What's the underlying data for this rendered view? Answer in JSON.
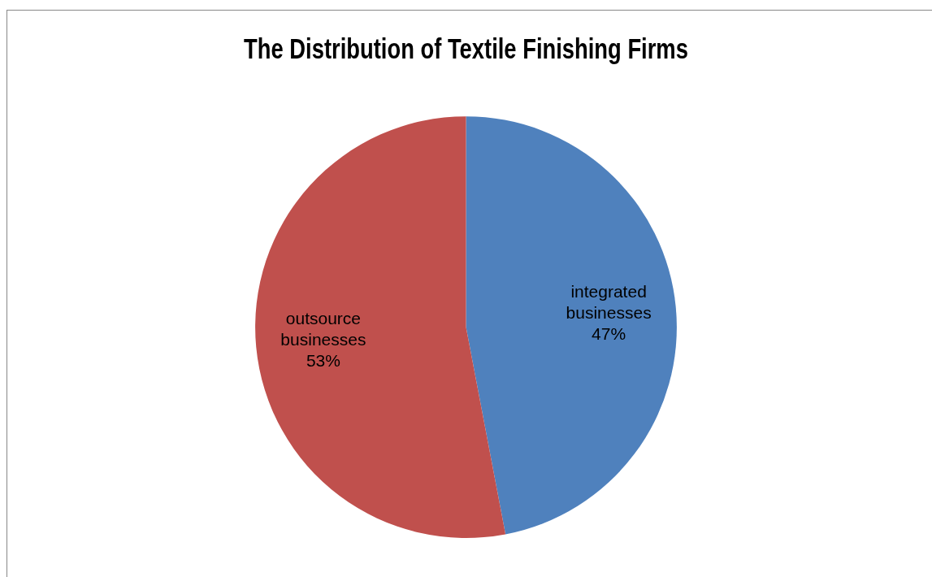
{
  "chart_data": {
    "type": "pie",
    "title": "The Distribution of Textile Finishing Firms",
    "categories": [
      "integrated businesses",
      "outsource businesses"
    ],
    "values": [
      47,
      53
    ],
    "colors": [
      "#4f81bd",
      "#c0504d"
    ],
    "value_labels": [
      "47%",
      "53%"
    ],
    "legend": false
  }
}
